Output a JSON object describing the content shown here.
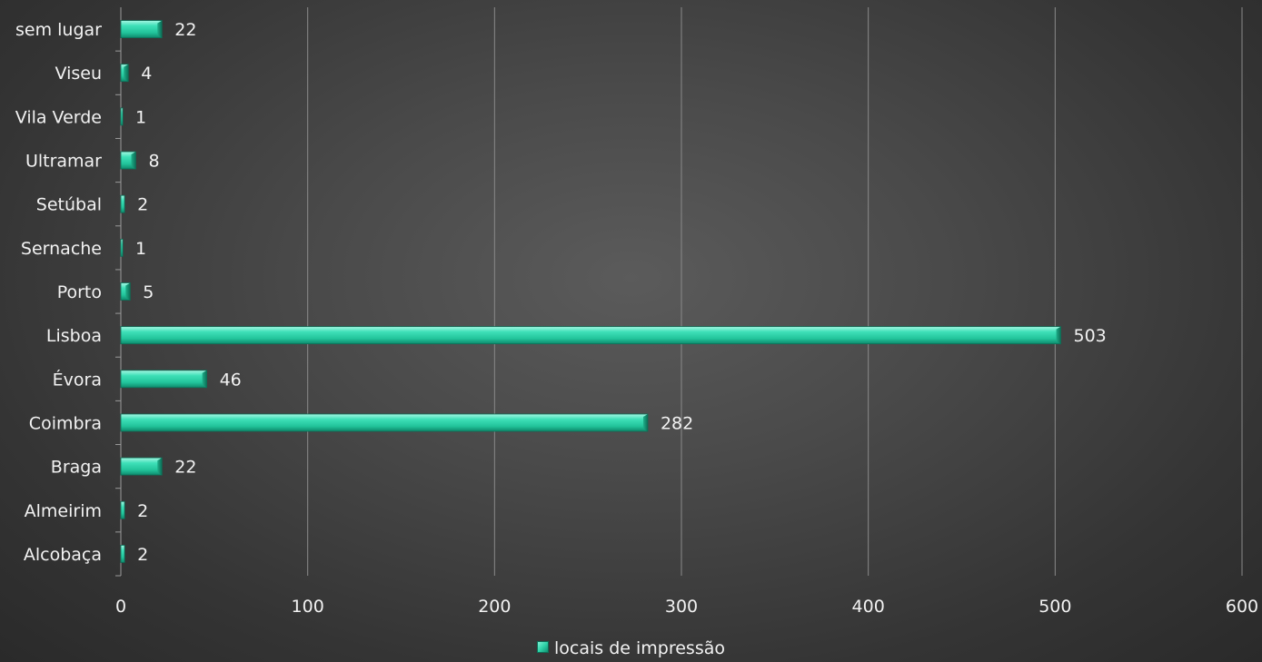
{
  "chart_data": {
    "type": "bar",
    "orientation": "horizontal",
    "title": "",
    "xlabel": "",
    "ylabel": "",
    "categories": [
      "Alcobaça",
      "Almeirim",
      "Braga",
      "Coimbra",
      "Évora",
      "Lisboa",
      "Porto",
      "Sernache",
      "Setúbal",
      "Ultramar",
      "Vila Verde",
      "Viseu",
      "sem lugar"
    ],
    "series": [
      {
        "name": "locais de impressão",
        "values": [
          2,
          2,
          22,
          282,
          46,
          503,
          5,
          1,
          2,
          8,
          1,
          4,
          22
        ]
      }
    ],
    "xlim": [
      0,
      600
    ],
    "xticks": [
      "0",
      "100",
      "200",
      "300",
      "400",
      "500",
      "600"
    ],
    "grid": "vertical",
    "legend_position": "bottom",
    "bar_color": "#2fd3a8",
    "background_color": "#4a4a4a"
  }
}
